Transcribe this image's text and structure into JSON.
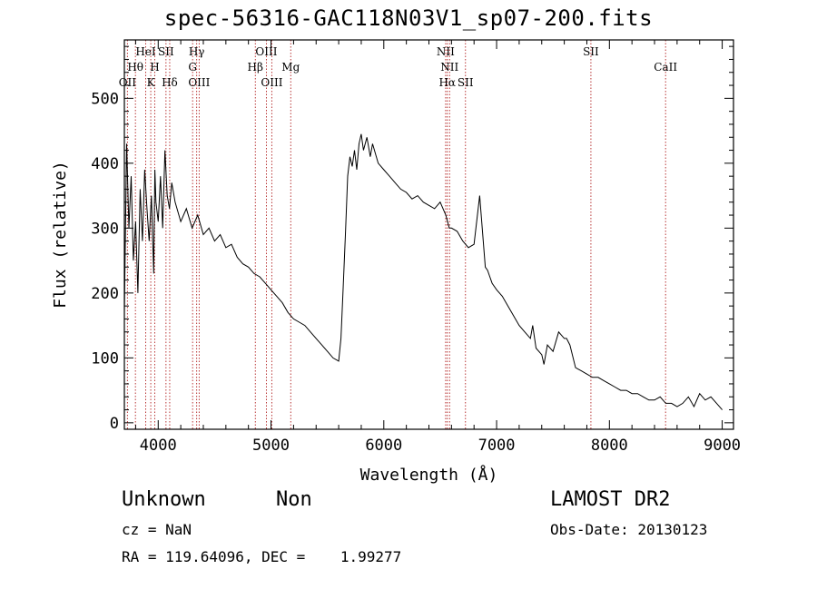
{
  "title": "spec-56316-GAC118N03V1_sp07-200.fits",
  "chart_data": {
    "type": "line",
    "xlabel": "Wavelength (Å)",
    "ylabel": "Flux (relative)",
    "xlim": [
      3700,
      9100
    ],
    "ylim": [
      -10,
      590
    ],
    "xticks": [
      4000,
      5000,
      6000,
      7000,
      8000,
      9000
    ],
    "yticks": [
      0,
      100,
      200,
      300,
      400,
      500
    ],
    "series": [
      {
        "x": [
          3700,
          3720,
          3740,
          3760,
          3780,
          3800,
          3820,
          3840,
          3860,
          3880,
          3900,
          3920,
          3940,
          3960,
          3970,
          3980,
          4000,
          4020,
          4040,
          4060,
          4080,
          4100,
          4120,
          4150,
          4200,
          4250,
          4300,
          4350,
          4400,
          4450,
          4500,
          4550,
          4600,
          4650,
          4700,
          4750,
          4800,
          4850,
          4900,
          4950,
          5000,
          5050,
          5100,
          5150,
          5200,
          5250,
          5300,
          5350,
          5400,
          5450,
          5500,
          5550,
          5600,
          5620,
          5640,
          5660,
          5680,
          5700,
          5720,
          5740,
          5760,
          5780,
          5800,
          5820,
          5850,
          5880,
          5900,
          5950,
          6000,
          6050,
          6100,
          6150,
          6200,
          6250,
          6300,
          6350,
          6400,
          6450,
          6500,
          6550,
          6580,
          6600,
          6650,
          6700,
          6750,
          6800,
          6850,
          6900,
          6920,
          6940,
          6960,
          7000,
          7050,
          7100,
          7150,
          7200,
          7250,
          7300,
          7320,
          7350,
          7400,
          7420,
          7450,
          7500,
          7550,
          7600,
          7620,
          7650,
          7700,
          7750,
          7800,
          7850,
          7900,
          7950,
          8000,
          8050,
          8100,
          8150,
          8200,
          8250,
          8300,
          8350,
          8400,
          8450,
          8500,
          8550,
          8600,
          8650,
          8700,
          8750,
          8800,
          8850,
          8900,
          8950,
          9000
        ],
        "y": [
          170,
          430,
          300,
          380,
          250,
          310,
          200,
          360,
          280,
          390,
          330,
          280,
          350,
          230,
          390,
          340,
          310,
          380,
          300,
          420,
          350,
          330,
          370,
          340,
          310,
          330,
          300,
          320,
          290,
          300,
          280,
          290,
          270,
          275,
          255,
          245,
          240,
          230,
          225,
          215,
          205,
          195,
          185,
          170,
          160,
          155,
          150,
          140,
          130,
          120,
          110,
          100,
          95,
          130,
          210,
          290,
          380,
          410,
          395,
          420,
          390,
          430,
          445,
          420,
          440,
          410,
          430,
          400,
          390,
          380,
          370,
          360,
          355,
          345,
          350,
          340,
          335,
          330,
          340,
          320,
          300,
          300,
          295,
          280,
          270,
          275,
          350,
          240,
          235,
          225,
          215,
          205,
          195,
          180,
          165,
          150,
          140,
          130,
          150,
          115,
          105,
          90,
          120,
          110,
          140,
          130,
          130,
          120,
          85,
          80,
          75,
          70,
          70,
          65,
          60,
          55,
          50,
          50,
          45,
          45,
          40,
          35,
          35,
          40,
          30,
          30,
          25,
          30,
          40,
          25,
          45,
          35,
          40,
          30,
          20
        ]
      }
    ],
    "line_markers": [
      {
        "label": "HeI",
        "x": 3889,
        "row": 0
      },
      {
        "label": "SII",
        "x": 4069,
        "row": 0
      },
      {
        "label": "Hγ",
        "x": 4341,
        "row": 0
      },
      {
        "label": "OIII",
        "x": 4959,
        "row": 0
      },
      {
        "label": "NII",
        "x": 6548,
        "row": 0
      },
      {
        "label": "SII",
        "x": 7836,
        "row": 0
      },
      {
        "label": "Hθ",
        "x": 3798,
        "row": 1
      },
      {
        "label": "H",
        "x": 3969,
        "row": 1
      },
      {
        "label": "G",
        "x": 4305,
        "row": 1
      },
      {
        "label": "Hβ",
        "x": 4861,
        "row": 1
      },
      {
        "label": "Mg",
        "x": 5175,
        "row": 1
      },
      {
        "label": "NII",
        "x": 6583,
        "row": 1
      },
      {
        "label": "CaII",
        "x": 8498,
        "row": 1
      },
      {
        "label": "OII",
        "x": 3727,
        "row": 2
      },
      {
        "label": "K",
        "x": 3934,
        "row": 2
      },
      {
        "label": "Hδ",
        "x": 4102,
        "row": 2
      },
      {
        "label": "OIII",
        "x": 4363,
        "row": 2
      },
      {
        "label": "OIII",
        "x": 5007,
        "row": 2
      },
      {
        "label": "Hα",
        "x": 6563,
        "row": 2
      },
      {
        "label": "SII",
        "x": 6724,
        "row": 2
      }
    ]
  },
  "object": {
    "class": "Unknown",
    "subclass": "Non"
  },
  "survey": "LAMOST DR2",
  "cz_text": "cz = NaN",
  "obs_date_text": "Obs-Date: 20130123",
  "coords_text": "RA = 119.64096, DEC =    1.99277"
}
